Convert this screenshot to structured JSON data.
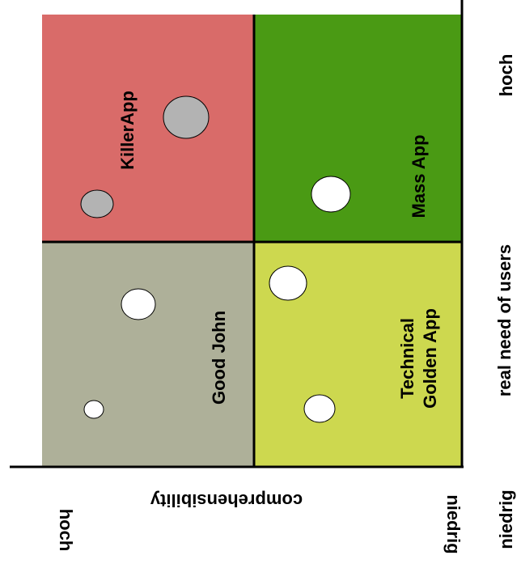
{
  "quadrants": {
    "top_left": {
      "label_lines": [
        "KillerApp"
      ],
      "color": "#d96b69"
    },
    "top_right": {
      "label_lines": [
        "Mass App"
      ],
      "color": "#4a9a14"
    },
    "bottom_left": {
      "label_lines": [
        "Good John"
      ],
      "color": "#aeb099"
    },
    "bottom_right": {
      "label_lines": [
        "Technical",
        "Golden App"
      ],
      "color": "#cdd84f"
    }
  },
  "axes": {
    "horizontal": {
      "label": "real need of users",
      "low": "niedrig",
      "high": "hoch"
    },
    "vertical": {
      "label": "comprehensibility",
      "low": "niedrig",
      "high": "hoch"
    }
  },
  "bubble_colors": {
    "grey": "#b3b3b3",
    "white": "#ffffff"
  }
}
